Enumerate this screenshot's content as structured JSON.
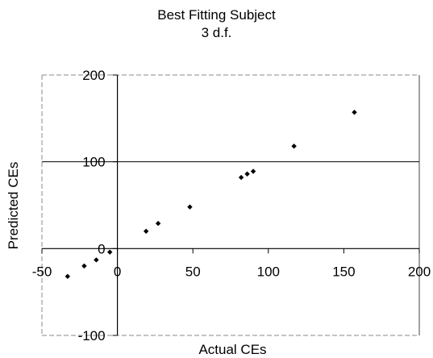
{
  "chart_data": {
    "type": "scatter",
    "title": "Best Fitting Subject",
    "subtitle": "3 d.f.",
    "xlabel": "Actual CEs",
    "ylabel": "Predicted CEs",
    "xlim": [
      -50,
      200
    ],
    "ylim": [
      -100,
      200
    ],
    "x_ticks": [
      -50,
      0,
      50,
      100,
      150,
      200
    ],
    "y_ticks": [
      -100,
      0,
      100,
      200
    ],
    "x_tick_labels": [
      "-50",
      "0",
      "50",
      "100",
      "150",
      "200"
    ],
    "y_tick_labels": [
      "-100",
      "0",
      "100",
      "200"
    ],
    "gridlines": [
      100
    ],
    "marker_color": "#000000",
    "points": [
      {
        "x": -33,
        "y": -32
      },
      {
        "x": -22,
        "y": -20
      },
      {
        "x": -14,
        "y": -13
      },
      {
        "x": -5,
        "y": -4
      },
      {
        "x": 19,
        "y": 20
      },
      {
        "x": 27,
        "y": 29
      },
      {
        "x": 48,
        "y": 48
      },
      {
        "x": 82,
        "y": 82
      },
      {
        "x": 86,
        "y": 86
      },
      {
        "x": 90,
        "y": 89
      },
      {
        "x": 117,
        "y": 118
      },
      {
        "x": 157,
        "y": 157
      }
    ]
  }
}
